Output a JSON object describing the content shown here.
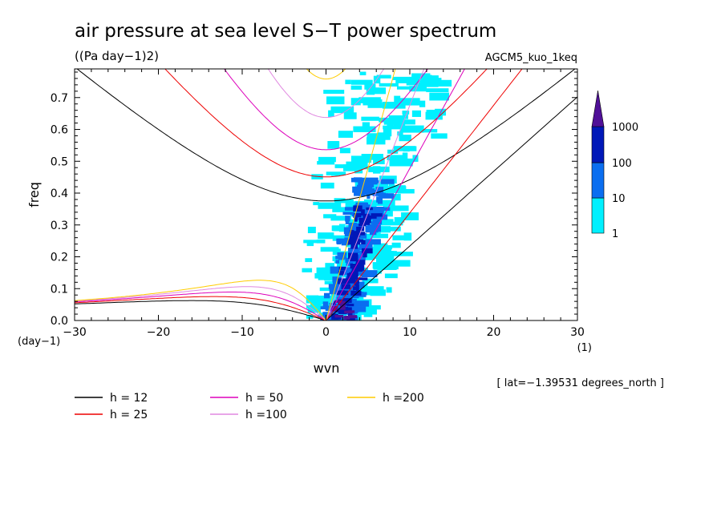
{
  "chart_data": {
    "type": "heatmap",
    "title": "air pressure at sea level S−T power spectrum",
    "units": "((Pa day−1)2)",
    "model": "AGCM5_kuo_1keq",
    "xlabel": "wvn",
    "ylabel": "freq",
    "x_unit": "(1)",
    "y_unit": "(day−1)",
    "location": "[ lat=−1.39531 degrees_north ]",
    "xlim": [
      -30,
      30
    ],
    "ylim": [
      0,
      0.79
    ],
    "x_ticks": [
      "−30",
      "−20",
      "−10",
      "0",
      "10",
      "20",
      "30"
    ],
    "x_tick_values": [
      -30,
      -20,
      -10,
      0,
      10,
      20,
      30
    ],
    "y_ticks": [
      "0.0",
      "0.1",
      "0.2",
      "0.3",
      "0.4",
      "0.5",
      "0.6",
      "0.7"
    ],
    "y_tick_values": [
      0,
      0.1,
      0.2,
      0.3,
      0.4,
      0.5,
      0.6,
      0.7
    ],
    "colorbar": {
      "levels": [
        "1",
        "10",
        "100",
        "1000"
      ],
      "colors": [
        "#00f0ff",
        "#0a6ef0",
        "#0018b8",
        "#501098"
      ]
    },
    "series": [
      {
        "name": "h = 12",
        "color": "#000000",
        "equivalent_depth_m": 12
      },
      {
        "name": "h = 25",
        "color": "#ee0000",
        "equivalent_depth_m": 25
      },
      {
        "name": "h = 50",
        "color": "#dd00bb",
        "equivalent_depth_m": 50
      },
      {
        "name": "h =100",
        "color": "#e088e0",
        "equivalent_depth_m": 100
      },
      {
        "name": "h =200",
        "color": "#ffcc00",
        "equivalent_depth_m": 200
      }
    ],
    "dispersion_values": {
      "kelvin_slope_per_wvn": {
        "h = 12": 0.0234,
        "h = 25": 0.0337,
        "h = 50": 0.0477,
        "h =100": 0.0674,
        "h =200": 0.0953
      },
      "n1_gravity_min_freq": {
        "h = 12": 0.37,
        "h = 25": 0.445,
        "h = 50": 0.528,
        "h =100": 0.628,
        "h =200": 0.745
      },
      "rossby_peak_freq": {
        "h = 12": 0.062,
        "h = 25": 0.075,
        "h = 50": 0.091,
        "h =100": 0.107,
        "h =200": 0.128
      },
      "rossby_peak_wvn": {
        "h = 12": -15,
        "h = 25": -12,
        "h = 50": -10,
        "h =100": -9,
        "h =200": -8
      }
    },
    "power_regions_description_values": [
      {
        "level": "1",
        "x_range": [
          -6,
          18
        ],
        "freq_range": [
          0,
          0.79
        ]
      },
      {
        "level": "10",
        "x_range": [
          -3,
          9
        ],
        "freq_range": [
          0,
          0.45
        ]
      },
      {
        "level": "100",
        "x_range": [
          -2,
          6
        ],
        "freq_range": [
          0,
          0.42
        ]
      },
      {
        "level": "1000",
        "x_range": [
          0,
          3
        ],
        "freq_range": [
          0,
          0.08
        ]
      }
    ]
  }
}
